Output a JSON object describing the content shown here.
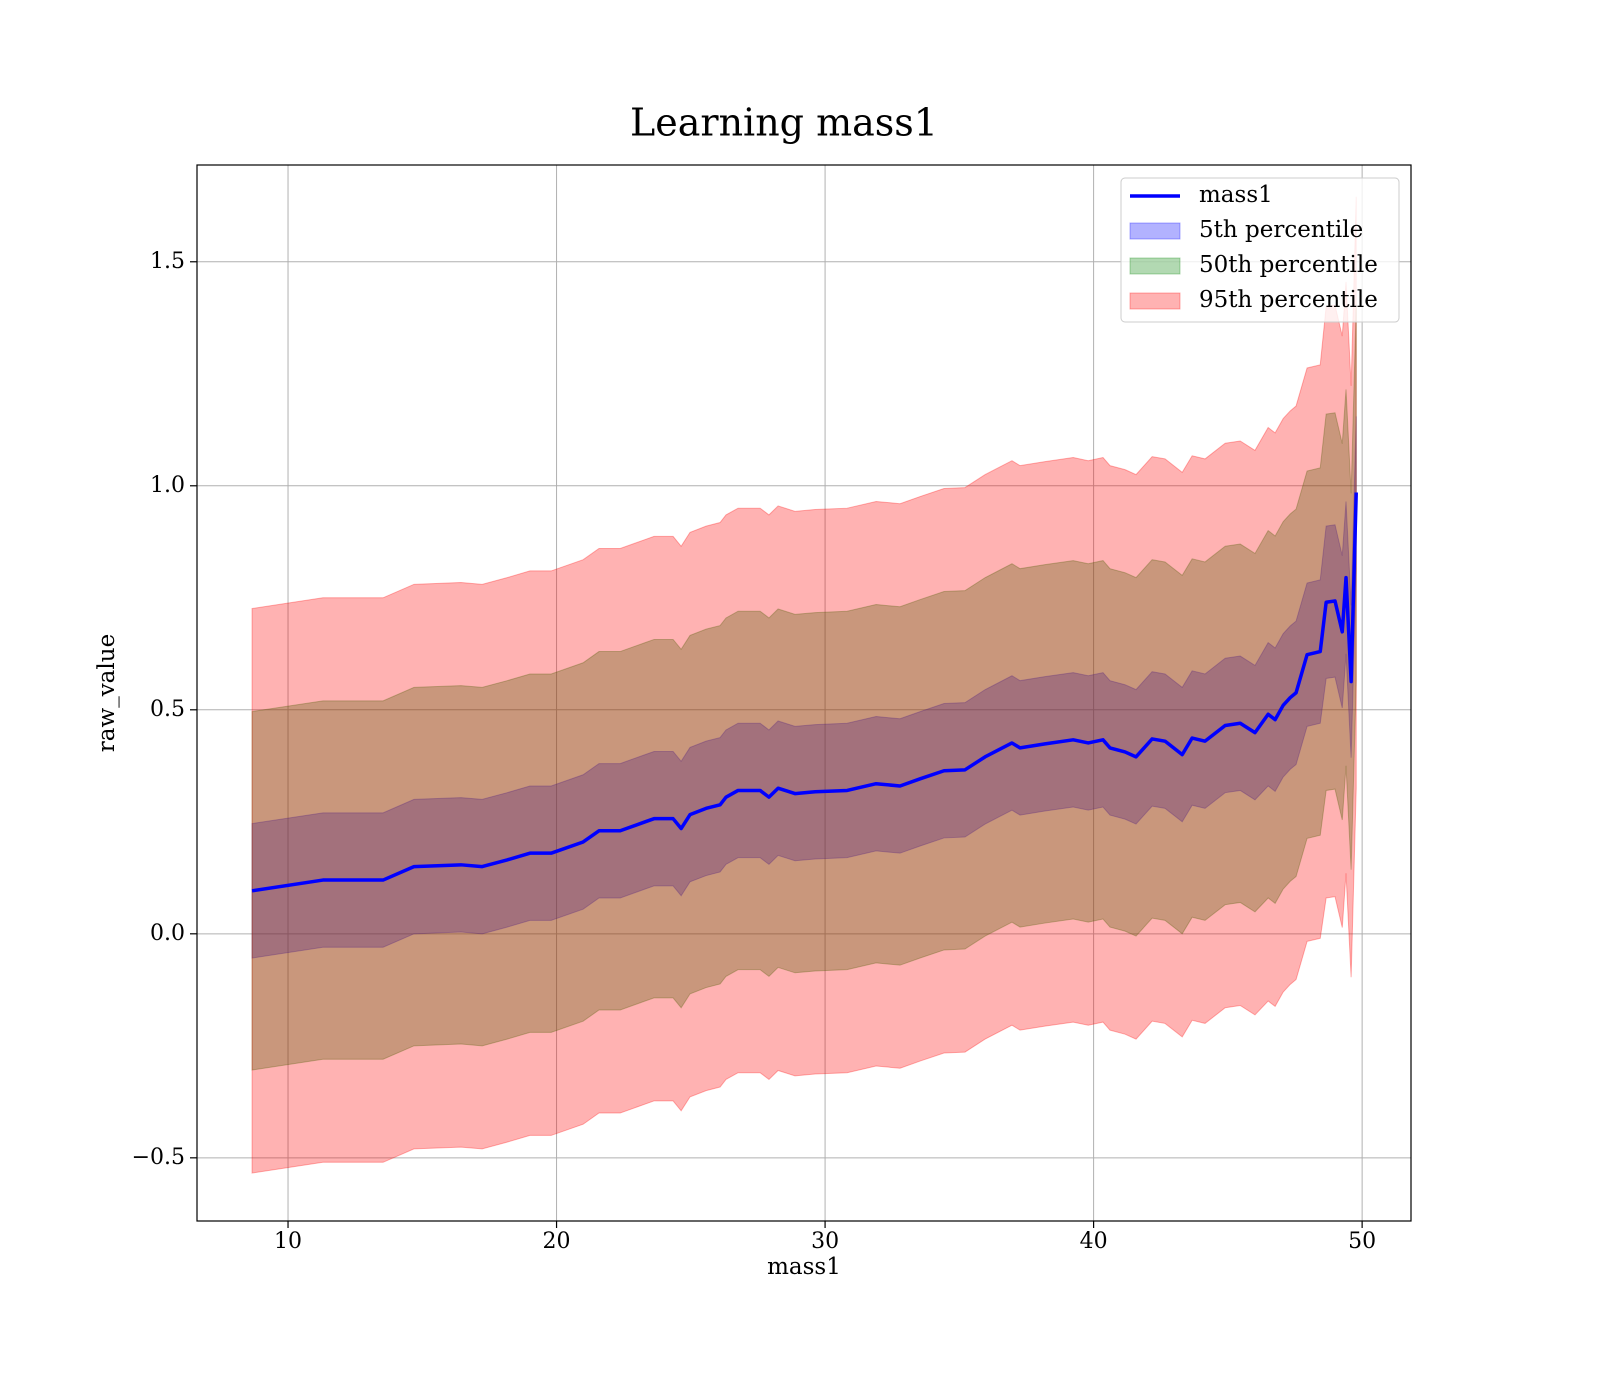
{
  "chart_data": {
    "type": "line",
    "title": "Learning mass1",
    "xlabel": "mass1",
    "ylabel": "raw_value",
    "x": [
      8.66,
      11.3,
      13.54,
      14.69,
      16.44,
      17.23,
      18.16,
      19.01,
      19.8,
      20.99,
      21.58,
      22.37,
      23.3,
      23.63,
      24.34,
      24.64,
      24.97,
      25.57,
      26.09,
      26.31,
      26.76,
      27.58,
      27.91,
      28.25,
      28.88,
      29.63,
      30.82,
      31.9,
      32.79,
      33.54,
      34.43,
      35.21,
      35.96,
      36.96,
      37.26,
      38.19,
      39.24,
      39.8,
      40.35,
      40.61,
      41.17,
      41.58,
      42.18,
      42.66,
      43.3,
      43.67,
      44.15,
      44.9,
      45.46,
      46.01,
      46.5,
      46.76,
      47.06,
      47.32,
      47.54,
      47.95,
      48.44,
      48.66,
      48.99,
      49.26,
      49.4,
      49.59,
      49.78
    ],
    "series": [
      {
        "name": "mass1",
        "color": "blue",
        "values": [
          0.096,
          0.12,
          0.12,
          0.15,
          0.154,
          0.15,
          0.165,
          0.18,
          0.18,
          0.205,
          0.23,
          0.23,
          0.25,
          0.257,
          0.257,
          0.235,
          0.266,
          0.28,
          0.288,
          0.305,
          0.32,
          0.32,
          0.305,
          0.325,
          0.313,
          0.317,
          0.32,
          0.335,
          0.33,
          0.346,
          0.364,
          0.366,
          0.395,
          0.426,
          0.415,
          0.424,
          0.433,
          0.426,
          0.433,
          0.415,
          0.406,
          0.395,
          0.435,
          0.43,
          0.4,
          0.437,
          0.43,
          0.465,
          0.47,
          0.449,
          0.49,
          0.478,
          0.51,
          0.527,
          0.538,
          0.623,
          0.63,
          0.74,
          0.743,
          0.674,
          0.795,
          0.563,
          0.985
        ]
      }
    ],
    "bands": [
      {
        "name": "5th percentile",
        "color": "blue",
        "alpha": 0.3,
        "lower": [
          -0.054,
          -0.03,
          -0.03,
          0,
          0.004,
          0,
          0.015,
          0.03,
          0.03,
          0.055,
          0.08,
          0.08,
          0.1,
          0.107,
          0.107,
          0.085,
          0.116,
          0.13,
          0.138,
          0.155,
          0.17,
          0.17,
          0.155,
          0.175,
          0.163,
          0.167,
          0.17,
          0.185,
          0.18,
          0.196,
          0.214,
          0.216,
          0.245,
          0.276,
          0.265,
          0.274,
          0.283,
          0.276,
          0.283,
          0.265,
          0.256,
          0.245,
          0.285,
          0.28,
          0.25,
          0.287,
          0.28,
          0.315,
          0.32,
          0.299,
          0.33,
          0.318,
          0.35,
          0.367,
          0.378,
          0.463,
          0.47,
          0.57,
          0.573,
          0.504,
          0.625,
          0.393,
          0.815
        ],
        "upper": [
          0.246,
          0.27,
          0.27,
          0.3,
          0.304,
          0.3,
          0.315,
          0.33,
          0.33,
          0.355,
          0.38,
          0.38,
          0.4,
          0.407,
          0.407,
          0.385,
          0.416,
          0.43,
          0.438,
          0.455,
          0.47,
          0.47,
          0.455,
          0.475,
          0.463,
          0.467,
          0.47,
          0.485,
          0.48,
          0.496,
          0.514,
          0.516,
          0.545,
          0.576,
          0.565,
          0.574,
          0.583,
          0.576,
          0.583,
          0.565,
          0.556,
          0.545,
          0.585,
          0.58,
          0.55,
          0.587,
          0.58,
          0.615,
          0.62,
          0.599,
          0.65,
          0.638,
          0.67,
          0.687,
          0.698,
          0.783,
          0.79,
          0.91,
          0.913,
          0.844,
          0.965,
          0.733,
          1.155
        ]
      },
      {
        "name": "50th percentile",
        "color": "green",
        "alpha": 0.3,
        "lower": [
          -0.304,
          -0.28,
          -0.28,
          -0.25,
          -0.246,
          -0.25,
          -0.235,
          -0.22,
          -0.22,
          -0.195,
          -0.17,
          -0.17,
          -0.15,
          -0.143,
          -0.143,
          -0.165,
          -0.134,
          -0.12,
          -0.112,
          -0.095,
          -0.08,
          -0.08,
          -0.095,
          -0.075,
          -0.087,
          -0.083,
          -0.08,
          -0.065,
          -0.07,
          -0.054,
          -0.036,
          -0.034,
          -0.005,
          0.026,
          0.015,
          0.024,
          0.033,
          0.026,
          0.033,
          0.015,
          0.006,
          -0.005,
          0.035,
          0.03,
          0,
          0.037,
          0.03,
          0.065,
          0.07,
          0.049,
          0.08,
          0.068,
          0.1,
          0.117,
          0.128,
          0.213,
          0.22,
          0.32,
          0.323,
          0.254,
          0.375,
          0.143,
          0.565
        ],
        "upper": [
          0.496,
          0.52,
          0.52,
          0.55,
          0.554,
          0.55,
          0.565,
          0.58,
          0.58,
          0.605,
          0.63,
          0.63,
          0.65,
          0.657,
          0.657,
          0.635,
          0.666,
          0.68,
          0.688,
          0.705,
          0.72,
          0.72,
          0.705,
          0.725,
          0.713,
          0.717,
          0.72,
          0.735,
          0.73,
          0.746,
          0.764,
          0.766,
          0.795,
          0.826,
          0.815,
          0.824,
          0.833,
          0.826,
          0.833,
          0.815,
          0.806,
          0.795,
          0.835,
          0.83,
          0.8,
          0.837,
          0.83,
          0.865,
          0.87,
          0.849,
          0.9,
          0.888,
          0.92,
          0.937,
          0.948,
          1.033,
          1.04,
          1.16,
          1.163,
          1.094,
          1.215,
          0.983,
          1.405
        ]
      },
      {
        "name": "95th percentile",
        "color": "red",
        "alpha": 0.3,
        "lower": [
          -0.534,
          -0.51,
          -0.51,
          -0.48,
          -0.476,
          -0.48,
          -0.465,
          -0.45,
          -0.45,
          -0.425,
          -0.4,
          -0.4,
          -0.38,
          -0.373,
          -0.373,
          -0.395,
          -0.364,
          -0.35,
          -0.342,
          -0.325,
          -0.31,
          -0.31,
          -0.325,
          -0.305,
          -0.317,
          -0.313,
          -0.31,
          -0.295,
          -0.3,
          -0.284,
          -0.266,
          -0.264,
          -0.235,
          -0.204,
          -0.215,
          -0.206,
          -0.197,
          -0.204,
          -0.197,
          -0.215,
          -0.224,
          -0.235,
          -0.195,
          -0.2,
          -0.23,
          -0.193,
          -0.2,
          -0.165,
          -0.16,
          -0.181,
          -0.15,
          -0.162,
          -0.13,
          -0.113,
          -0.102,
          -0.017,
          -0.01,
          0.08,
          0.083,
          0.014,
          0.135,
          -0.097,
          0.325
        ],
        "upper": [
          0.726,
          0.75,
          0.75,
          0.78,
          0.784,
          0.78,
          0.795,
          0.81,
          0.81,
          0.835,
          0.86,
          0.86,
          0.88,
          0.887,
          0.887,
          0.865,
          0.896,
          0.91,
          0.918,
          0.935,
          0.95,
          0.95,
          0.935,
          0.955,
          0.943,
          0.947,
          0.95,
          0.965,
          0.96,
          0.976,
          0.994,
          0.996,
          1.025,
          1.056,
          1.045,
          1.054,
          1.063,
          1.056,
          1.063,
          1.045,
          1.036,
          1.025,
          1.065,
          1.06,
          1.03,
          1.067,
          1.06,
          1.095,
          1.1,
          1.079,
          1.13,
          1.118,
          1.15,
          1.167,
          1.178,
          1.263,
          1.27,
          1.4,
          1.403,
          1.334,
          1.455,
          1.223,
          1.645
        ]
      }
    ],
    "xlim": [
      6.61,
      51.82
    ],
    "ylim": [
      -0.641,
      1.716
    ],
    "xticks": [
      10,
      20,
      30,
      40,
      50
    ],
    "yticks": [
      {
        "value": -0.5,
        "label": "−0.5"
      },
      {
        "value": 0,
        "label": "0.0"
      },
      0.5,
      {
        "value": 1,
        "label": "1.0"
      },
      1.5
    ],
    "grid": true,
    "legend": "upper right"
  }
}
